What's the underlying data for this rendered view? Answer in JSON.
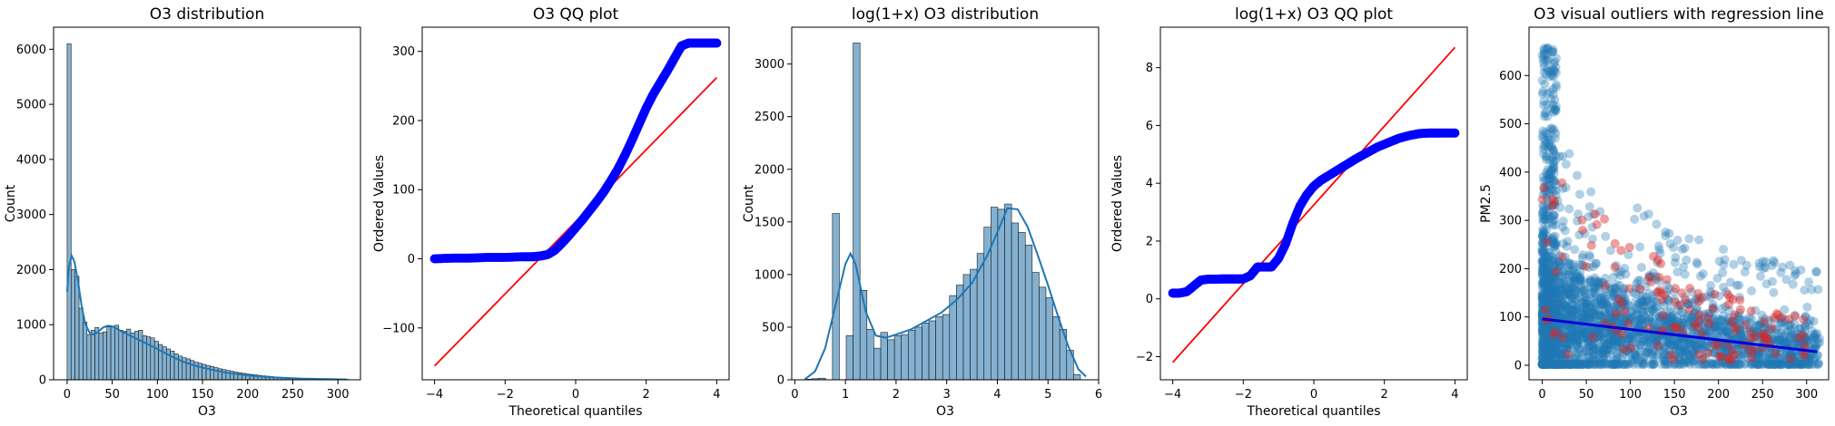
{
  "chart_data": [
    {
      "type": "bar",
      "title": "O3 distribution",
      "xlabel": "O3",
      "ylabel": "Count",
      "xlim": [
        -15,
        325
      ],
      "ylim": [
        0,
        6400
      ],
      "xticks": [
        0,
        50,
        100,
        150,
        200,
        250,
        300
      ],
      "yticks": [
        0,
        1000,
        2000,
        3000,
        4000,
        5000,
        6000
      ],
      "bin_width": 4.4,
      "bin_start": 0,
      "values": [
        6100,
        2000,
        1880,
        1300,
        1050,
        820,
        900,
        950,
        850,
        870,
        960,
        970,
        990,
        900,
        880,
        920,
        850,
        880,
        900,
        800,
        780,
        760,
        700,
        640,
        600,
        560,
        520,
        470,
        430,
        400,
        380,
        350,
        320,
        300,
        280,
        260,
        240,
        220,
        200,
        185,
        170,
        155,
        140,
        128,
        116,
        105,
        96,
        88,
        80,
        72,
        65,
        58,
        52,
        46,
        41,
        36,
        32,
        28,
        25,
        22,
        19,
        17,
        15,
        13,
        11,
        10,
        9,
        8,
        7,
        12,
        6
      ],
      "kde": {
        "x": [
          0,
          2,
          5,
          8,
          12,
          16,
          20,
          25,
          30,
          35,
          40,
          45,
          50,
          55,
          60,
          70,
          80,
          90,
          100,
          110,
          120,
          130,
          140,
          150,
          160,
          170,
          180,
          190,
          200,
          210,
          220,
          230,
          240,
          250,
          260,
          270,
          280,
          290,
          300,
          310
        ],
        "y": [
          1600,
          2050,
          2250,
          2150,
          1800,
          1350,
          1020,
          850,
          820,
          880,
          950,
          980,
          970,
          930,
          880,
          800,
          720,
          640,
          560,
          470,
          390,
          320,
          265,
          220,
          185,
          150,
          120,
          100,
          80,
          65,
          52,
          42,
          34,
          28,
          22,
          18,
          14,
          11,
          9,
          7
        ]
      },
      "bar_color": "#5b97c2",
      "line_color": "#1f77b4"
    },
    {
      "type": "scatter",
      "title": "O3 QQ plot",
      "xlabel": "Theoretical quantiles",
      "ylabel": "Ordered Values",
      "xlim": [
        -4.35,
        4.35
      ],
      "ylim": [
        -175,
        335
      ],
      "xticks": [
        -4,
        -2,
        0,
        2,
        4
      ],
      "yticks": [
        -100,
        0,
        100,
        200,
        300
      ],
      "points": {
        "x": [
          -4.0,
          -3.5,
          -3.0,
          -2.5,
          -2.0,
          -1.5,
          -1.2,
          -1.0,
          -0.8,
          -0.6,
          -0.4,
          -0.2,
          0.0,
          0.2,
          0.4,
          0.6,
          0.8,
          1.0,
          1.2,
          1.4,
          1.6,
          1.8,
          2.0,
          2.2,
          2.4,
          2.6,
          2.8,
          3.0,
          3.2,
          3.4,
          3.6,
          3.8,
          4.0
        ],
        "y": [
          0,
          1,
          1,
          2,
          2,
          3,
          3,
          4,
          6,
          12,
          22,
          33,
          45,
          57,
          70,
          83,
          97,
          113,
          130,
          150,
          172,
          195,
          218,
          238,
          255,
          272,
          290,
          308,
          312,
          312,
          312,
          312,
          312
        ]
      },
      "fit_line": {
        "x": [
          -4.0,
          4.0
        ],
        "y": [
          -155,
          262
        ]
      },
      "point_color": "#0000ff",
      "line_color": "#ff0000"
    },
    {
      "type": "bar",
      "title": "log(1+x) O3 distribution",
      "xlabel": "O3",
      "ylabel": "Count",
      "xlim": [
        -0.06,
        6.0
      ],
      "ylim": [
        0,
        3350
      ],
      "xticks": [
        0,
        1,
        2,
        3,
        4,
        5,
        6
      ],
      "yticks": [
        0,
        500,
        1000,
        1500,
        2000,
        2500,
        3000
      ],
      "bin_width": 0.136,
      "bin_start": 0.2,
      "values": [
        5,
        10,
        15,
        0,
        1580,
        0,
        420,
        3200,
        850,
        480,
        300,
        450,
        380,
        420,
        430,
        470,
        500,
        540,
        560,
        600,
        620,
        800,
        900,
        1000,
        1050,
        1200,
        1450,
        1640,
        1620,
        1670,
        1490,
        1400,
        1280,
        1020,
        880,
        780,
        600,
        480,
        280,
        50
      ],
      "kde": {
        "x": [
          0.2,
          0.4,
          0.6,
          0.8,
          1.0,
          1.1,
          1.2,
          1.4,
          1.6,
          1.8,
          2.0,
          2.3,
          2.6,
          2.9,
          3.2,
          3.5,
          3.8,
          4.0,
          4.2,
          4.4,
          4.6,
          4.8,
          5.0,
          5.2,
          5.4,
          5.6,
          5.75
        ],
        "y": [
          5,
          80,
          300,
          700,
          1100,
          1200,
          1100,
          650,
          420,
          400,
          430,
          480,
          560,
          640,
          760,
          920,
          1180,
          1400,
          1630,
          1620,
          1450,
          1180,
          900,
          600,
          320,
          100,
          30
        ]
      },
      "bar_color": "#5b97c2",
      "line_color": "#1f77b4"
    },
    {
      "type": "scatter",
      "title": "log(1+x) O3 QQ plot",
      "xlabel": "Theoretical quantiles",
      "ylabel": "Ordered Values",
      "xlim": [
        -4.35,
        4.35
      ],
      "ylim": [
        -2.8,
        9.4
      ],
      "xticks": [
        -4,
        -2,
        0,
        2,
        4
      ],
      "yticks": [
        -2,
        0,
        2,
        4,
        6,
        8
      ],
      "points": {
        "x": [
          -4.0,
          -3.8,
          -3.6,
          -3.4,
          -3.2,
          -3.0,
          -2.8,
          -2.6,
          -2.4,
          -2.2,
          -2.0,
          -1.8,
          -1.6,
          -1.4,
          -1.2,
          -1.0,
          -0.8,
          -0.6,
          -0.4,
          -0.2,
          0.0,
          0.2,
          0.4,
          0.6,
          0.8,
          1.0,
          1.2,
          1.5,
          1.8,
          2.1,
          2.4,
          2.7,
          3.0,
          3.3,
          3.6,
          4.0
        ],
        "y": [
          0.2,
          0.2,
          0.25,
          0.45,
          0.65,
          0.68,
          0.68,
          0.69,
          0.69,
          0.69,
          0.69,
          0.8,
          1.1,
          1.1,
          1.1,
          1.4,
          1.9,
          2.6,
          3.2,
          3.6,
          3.9,
          4.1,
          4.25,
          4.4,
          4.55,
          4.7,
          4.85,
          5.05,
          5.25,
          5.4,
          5.55,
          5.65,
          5.72,
          5.74,
          5.74,
          5.74
        ]
      },
      "fit_line": {
        "x": [
          -4.0,
          4.0
        ],
        "y": [
          -2.2,
          8.7
        ]
      },
      "point_color": "#0000ff",
      "line_color": "#ff0000"
    },
    {
      "type": "scatter",
      "title": "O3 visual outliers with regression line",
      "xlabel": "O3",
      "ylabel": "PM2.5",
      "xlim": [
        -15,
        325
      ],
      "ylim": [
        -30,
        700
      ],
      "xticks": [
        0,
        50,
        100,
        150,
        200,
        250,
        300
      ],
      "yticks": [
        0,
        100,
        200,
        300,
        400,
        500,
        600
      ],
      "regression": {
        "x": [
          0,
          312
        ],
        "y": [
          96,
          28
        ]
      },
      "point_color": "#1f77b4",
      "outlier_color": "#d62728",
      "line_color": "#0000dd"
    }
  ]
}
